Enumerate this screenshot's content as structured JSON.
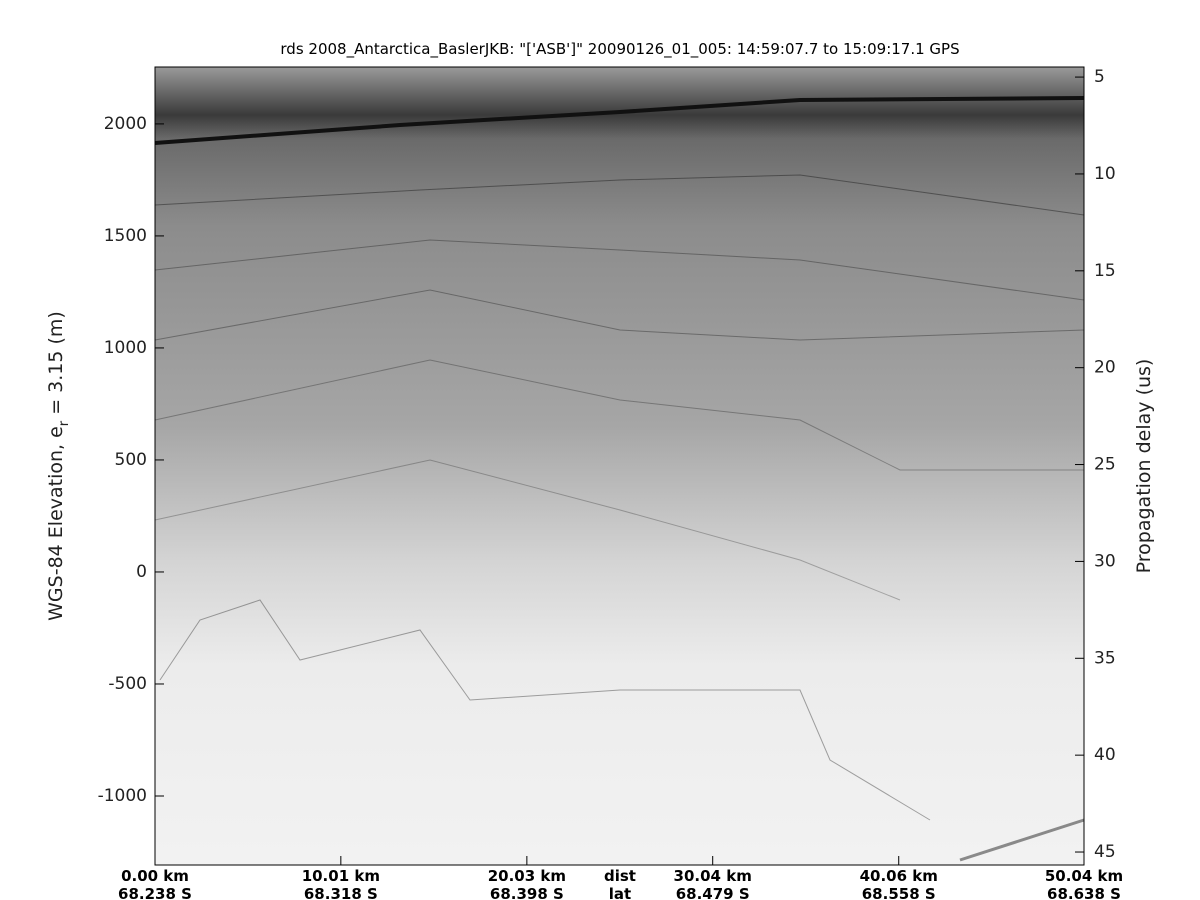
{
  "chart_data": {
    "type": "radargram",
    "title": "rds 2008_Antarctica_BaslerJKB: \"['ASB']\"  20090126_01_005: 14:59:07.7 to 15:09:17.1 GPS",
    "ylabel": "WGS-84 Elevation, e",
    "ylabel_sub": "r",
    "ylabel_end": " = 3.15 (m)",
    "y2label": "Propagation delay (us)",
    "xlabel": "dist",
    "x2label": "lat",
    "xlim": [
      0,
      50.04
    ],
    "xticks": [
      {
        "value": 0,
        "label": "0.00 km"
      },
      {
        "value": 10.01,
        "label": "10.01 km"
      },
      {
        "value": 20.03,
        "label": "20.03 km"
      },
      {
        "value": 30.04,
        "label": "30.04 km"
      },
      {
        "value": 40.06,
        "label": "40.06 km"
      },
      {
        "value": 50.04,
        "label": "50.04 km"
      }
    ],
    "lat_labels": [
      "68.238 S",
      "68.318 S",
      "68.398 S",
      "68.479 S",
      "68.558 S",
      "68.638 S"
    ],
    "ylim": [
      -1308,
      2254
    ],
    "yticks": [
      -1000,
      -500,
      0,
      500,
      1000,
      1500,
      2000
    ],
    "y2lim": [
      45.67,
      4.48
    ],
    "y2ticks": [
      5,
      10,
      15,
      20,
      25,
      30,
      35,
      40,
      45
    ]
  }
}
